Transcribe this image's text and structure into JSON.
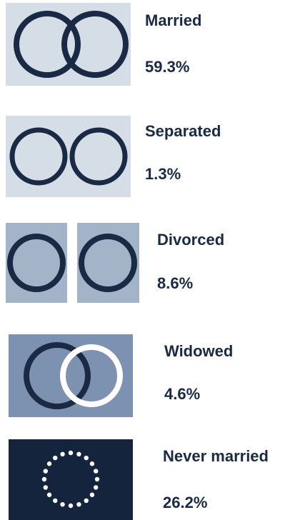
{
  "items": [
    {
      "label": "Married",
      "value": "59.3%"
    },
    {
      "label": "Separated",
      "value": "1.3%"
    },
    {
      "label": "Divorced",
      "value": "8.6%"
    },
    {
      "label": "Widowed",
      "value": "4.6%"
    },
    {
      "label": "Never married",
      "value": "26.2%"
    }
  ]
}
